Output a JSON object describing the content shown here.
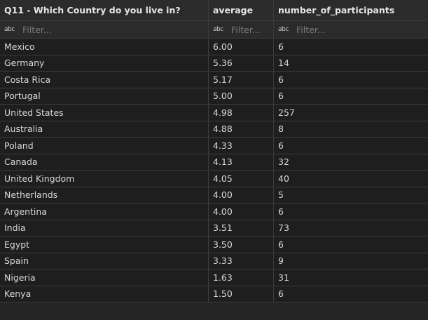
{
  "columns": [
    {
      "label": "Q11 - Which Country do you live in?"
    },
    {
      "label": "average"
    },
    {
      "label": "number_of_participants"
    }
  ],
  "filter": {
    "icon_text": "abc",
    "placeholder": "Filter..."
  },
  "rows": [
    {
      "country": "Mexico",
      "average": "6.00",
      "participants": "6"
    },
    {
      "country": "Germany",
      "average": "5.36",
      "participants": "14"
    },
    {
      "country": "Costa Rica",
      "average": "5.17",
      "participants": "6"
    },
    {
      "country": "Portugal",
      "average": "5.00",
      "participants": "6"
    },
    {
      "country": "United States",
      "average": "4.98",
      "participants": "257"
    },
    {
      "country": "Australia",
      "average": "4.88",
      "participants": "8"
    },
    {
      "country": "Poland",
      "average": "4.33",
      "participants": "6"
    },
    {
      "country": "Canada",
      "average": "4.13",
      "participants": "32"
    },
    {
      "country": "United Kingdom",
      "average": "4.05",
      "participants": "40"
    },
    {
      "country": "Netherlands",
      "average": "4.00",
      "participants": "5"
    },
    {
      "country": "Argentina",
      "average": "4.00",
      "participants": "6"
    },
    {
      "country": "India",
      "average": "3.51",
      "participants": "73"
    },
    {
      "country": "Egypt",
      "average": "3.50",
      "participants": "6"
    },
    {
      "country": "Spain",
      "average": "3.33",
      "participants": "9"
    },
    {
      "country": "Nigeria",
      "average": "1.63",
      "participants": "31"
    },
    {
      "country": "Kenya",
      "average": "1.50",
      "participants": "6"
    }
  ],
  "colors": {
    "background": "#252526",
    "row_background": "#1e1e1e",
    "grid_line": "#3c3c3c",
    "text": "#d8d8d8"
  }
}
